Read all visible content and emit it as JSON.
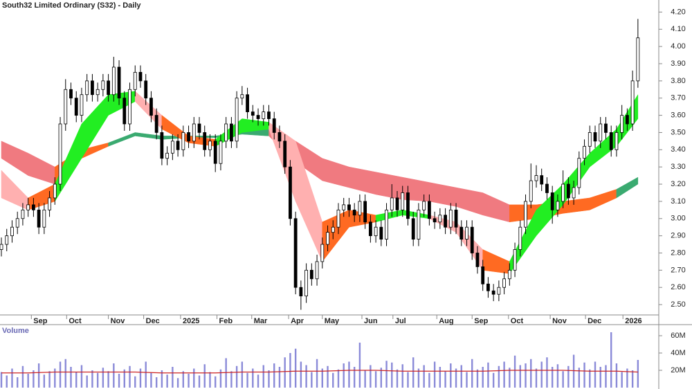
{
  "chart_data": [
    {
      "type": "candlestick",
      "title": "South32 Limited Ordinary (S32) - Daily",
      "xlim": [
        -0.26,
        122.9
      ],
      "xticks": [
        {
          "value": 5.6,
          "label": "Sep"
        },
        {
          "value": 12.2,
          "label": "Oct"
        },
        {
          "value": 20,
          "label": "Nov"
        },
        {
          "value": 26.6,
          "label": "Dec"
        },
        {
          "value": 33.5,
          "label": "2025"
        },
        {
          "value": 40.3,
          "label": "Feb"
        },
        {
          "value": 46.8,
          "label": "Mar"
        },
        {
          "value": 53.7,
          "label": "Apr"
        },
        {
          "value": 60,
          "label": "May"
        },
        {
          "value": 67.4,
          "label": "Jun"
        },
        {
          "value": 73.2,
          "label": "Jul"
        },
        {
          "value": 81.4,
          "label": "Aug"
        },
        {
          "value": 88,
          "label": "Sep"
        },
        {
          "value": 94.8,
          "label": "Oct"
        },
        {
          "value": 102.6,
          "label": "Nov"
        },
        {
          "value": 109.2,
          "label": "Dec"
        },
        {
          "value": 116.2,
          "label": "2026"
        }
      ],
      "ylim": [
        2.44,
        4.27
      ],
      "yticks": [
        {
          "value": 2.5,
          "label": "2.50"
        },
        {
          "value": 2.6,
          "label": "2.60"
        },
        {
          "value": 2.7,
          "label": "2.70"
        },
        {
          "value": 2.8,
          "label": "2.80"
        },
        {
          "value": 2.9,
          "label": "2.90"
        },
        {
          "value": 3.0,
          "label": "3.00"
        },
        {
          "value": 3.1,
          "label": "3.10"
        },
        {
          "value": 3.2,
          "label": "3.20"
        },
        {
          "value": 3.3,
          "label": "3.30"
        },
        {
          "value": 3.4,
          "label": "3.40"
        },
        {
          "value": 3.5,
          "label": "3.50"
        },
        {
          "value": 3.6,
          "label": "3.60"
        },
        {
          "value": 3.7,
          "label": "3.70"
        },
        {
          "value": 3.8,
          "label": "3.80"
        },
        {
          "value": 3.9,
          "label": "3.90"
        },
        {
          "value": 4.0,
          "label": "4.00"
        },
        {
          "value": 4.1,
          "label": "4.10"
        },
        {
          "value": 4.2,
          "label": "4.20"
        }
      ],
      "up_color": "#ffffff",
      "down_color": "#000000",
      "open": [
        2.82,
        2.85,
        2.9,
        2.95,
        3.0,
        3.05,
        3.08,
        3.05,
        2.95,
        3.05,
        3.12,
        3.2,
        3.55,
        3.75,
        3.7,
        3.6,
        3.72,
        3.8,
        3.72,
        3.75,
        3.8,
        3.72,
        3.88,
        3.7,
        3.55,
        3.75,
        3.85,
        3.8,
        3.7,
        3.6,
        3.5,
        3.35,
        3.38,
        3.45,
        3.4,
        3.5,
        3.45,
        3.55,
        3.5,
        3.4,
        3.45,
        3.32,
        3.45,
        3.55,
        3.45,
        3.7,
        3.72,
        3.62,
        3.6,
        3.58,
        3.62,
        3.58,
        3.5,
        3.45,
        3.3,
        3.0,
        2.6,
        2.55,
        2.7,
        2.65,
        2.75,
        2.85,
        2.92,
        2.95,
        3.05,
        3.08,
        3.05,
        3.02,
        3.1,
        2.98,
        2.9,
        2.95,
        2.88,
        3.05,
        3.12,
        3.05,
        3.15,
        3.0,
        2.88,
        3.05,
        3.1,
        3.0,
        2.98,
        3.02,
        2.95,
        3.05,
        2.95,
        2.88,
        2.95,
        2.8,
        2.72,
        2.62,
        2.58,
        2.56,
        2.6,
        2.65,
        2.7,
        2.82,
        2.95,
        3.1,
        3.22,
        3.25,
        3.2,
        3.15,
        3.05,
        3.1,
        3.2,
        3.12,
        3.18,
        3.35,
        3.42,
        3.5,
        3.45,
        3.55,
        3.5,
        3.4,
        3.5,
        3.6,
        3.55,
        3.8
      ],
      "high": [
        2.89,
        2.94,
        2.99,
        3.04,
        3.09,
        3.12,
        3.12,
        3.09,
        3.09,
        3.16,
        3.24,
        3.59,
        3.81,
        3.79,
        3.74,
        3.76,
        3.84,
        3.84,
        3.79,
        3.84,
        3.84,
        3.94,
        3.92,
        3.74,
        3.79,
        3.89,
        3.89,
        3.84,
        3.74,
        3.64,
        3.54,
        3.42,
        3.49,
        3.49,
        3.54,
        3.54,
        3.59,
        3.59,
        3.54,
        3.49,
        3.49,
        3.49,
        3.59,
        3.59,
        3.74,
        3.77,
        3.76,
        3.66,
        3.64,
        3.66,
        3.66,
        3.62,
        3.54,
        3.49,
        3.34,
        3.04,
        2.64,
        2.74,
        2.74,
        2.79,
        2.89,
        2.96,
        2.99,
        3.09,
        3.12,
        3.12,
        3.09,
        3.14,
        3.14,
        3.02,
        2.99,
        2.99,
        3.09,
        3.2,
        3.16,
        3.19,
        3.19,
        3.04,
        3.09,
        3.14,
        3.14,
        3.04,
        3.06,
        3.06,
        3.09,
        3.09,
        2.99,
        2.99,
        2.99,
        2.84,
        2.76,
        2.66,
        2.62,
        2.64,
        2.69,
        2.74,
        2.86,
        2.99,
        3.14,
        3.32,
        3.31,
        3.29,
        3.24,
        3.19,
        3.14,
        3.28,
        3.24,
        3.22,
        3.39,
        3.46,
        3.54,
        3.54,
        3.59,
        3.59,
        3.54,
        3.54,
        3.66,
        3.64,
        3.86,
        4.16
      ],
      "low": [
        2.78,
        2.81,
        2.86,
        2.91,
        2.96,
        3.01,
        3.01,
        2.91,
        2.91,
        3.01,
        3.08,
        3.16,
        3.51,
        3.66,
        3.56,
        3.56,
        3.68,
        3.68,
        3.68,
        3.71,
        3.68,
        3.68,
        3.66,
        3.51,
        3.51,
        3.71,
        3.76,
        3.66,
        3.56,
        3.46,
        3.31,
        3.31,
        3.34,
        3.36,
        3.36,
        3.41,
        3.41,
        3.46,
        3.36,
        3.36,
        3.27,
        3.28,
        3.41,
        3.41,
        3.41,
        3.66,
        3.58,
        3.56,
        3.54,
        3.54,
        3.54,
        3.46,
        3.41,
        3.26,
        2.96,
        2.56,
        2.47,
        2.51,
        2.61,
        2.61,
        2.71,
        2.81,
        2.88,
        2.91,
        3.01,
        3.01,
        2.98,
        2.98,
        2.94,
        2.86,
        2.86,
        2.84,
        2.84,
        3.01,
        3.01,
        3.01,
        2.96,
        2.84,
        2.84,
        3.01,
        2.96,
        2.94,
        2.94,
        2.91,
        2.91,
        2.91,
        2.84,
        2.84,
        2.76,
        2.68,
        2.58,
        2.54,
        2.52,
        2.52,
        2.56,
        2.61,
        2.66,
        2.78,
        2.91,
        3.06,
        3.18,
        3.16,
        3.11,
        2.97,
        3.01,
        3.06,
        3.08,
        3.08,
        3.14,
        3.31,
        3.38,
        3.41,
        3.41,
        3.46,
        3.36,
        3.36,
        3.46,
        3.51,
        3.51,
        3.76
      ],
      "close": [
        2.85,
        2.9,
        2.95,
        3.0,
        3.05,
        3.08,
        3.05,
        2.95,
        3.05,
        3.12,
        3.2,
        3.55,
        3.75,
        3.7,
        3.6,
        3.72,
        3.8,
        3.72,
        3.75,
        3.8,
        3.72,
        3.88,
        3.7,
        3.55,
        3.75,
        3.85,
        3.8,
        3.7,
        3.6,
        3.5,
        3.35,
        3.38,
        3.45,
        3.4,
        3.5,
        3.45,
        3.55,
        3.5,
        3.4,
        3.45,
        3.32,
        3.45,
        3.55,
        3.45,
        3.7,
        3.72,
        3.62,
        3.6,
        3.58,
        3.62,
        3.58,
        3.5,
        3.45,
        3.3,
        3.0,
        2.6,
        2.55,
        2.7,
        2.65,
        2.75,
        2.85,
        2.92,
        2.95,
        3.05,
        3.08,
        3.05,
        3.02,
        3.1,
        2.98,
        2.9,
        2.95,
        2.88,
        3.05,
        3.12,
        3.05,
        3.15,
        3.0,
        2.88,
        3.05,
        3.1,
        3.0,
        2.98,
        3.02,
        2.95,
        3.05,
        2.95,
        2.88,
        2.95,
        2.8,
        2.72,
        2.62,
        2.58,
        2.56,
        2.6,
        2.65,
        2.7,
        2.82,
        2.95,
        3.1,
        3.22,
        3.25,
        3.2,
        3.15,
        3.05,
        3.1,
        3.2,
        3.12,
        3.18,
        3.35,
        3.42,
        3.5,
        3.45,
        3.55,
        3.5,
        3.4,
        3.5,
        3.6,
        3.55,
        3.8,
        4.05
      ],
      "ribbons": [
        {
          "x": [
            0,
            5,
            10,
            15,
            20,
            25,
            30,
            35,
            40,
            45,
            50,
            55,
            60,
            65,
            70,
            75,
            80,
            85,
            90,
            95,
            100,
            105,
            110,
            115,
            119
          ],
          "upper": [
            3.45,
            3.38,
            3.3,
            3.4,
            3.44,
            3.5,
            3.48,
            3.48,
            3.48,
            3.5,
            3.52,
            3.45,
            3.35,
            3.3,
            3.27,
            3.24,
            3.21,
            3.18,
            3.15,
            3.08,
            3.08,
            3.1,
            3.12,
            3.17,
            3.24
          ],
          "lower": [
            3.35,
            3.25,
            3.2,
            3.35,
            3.42,
            3.48,
            3.46,
            3.47,
            3.47,
            3.49,
            3.48,
            3.33,
            3.22,
            3.18,
            3.14,
            3.11,
            3.1,
            3.07,
            3.02,
            2.98,
            3.0,
            3.03,
            3.05,
            3.12,
            3.2
          ],
          "colors": [
            "#f07a80",
            "#f07a80",
            "#ff6a22",
            "#ff6a22",
            "#3aaa70",
            "#3aaa70",
            "#3aaa70",
            "#3aaa70",
            "#3aaa70",
            "#3aaa70",
            "#f07a80",
            "#f07a80",
            "#f07a80",
            "#f07a80",
            "#f07a80",
            "#f07a80",
            "#f07a80",
            "#f07a80",
            "#f07a80",
            "#ff6a22",
            "#ff6a22",
            "#ff6a22",
            "#ff6a22",
            "#3aaa70"
          ]
        },
        {
          "x": [
            0,
            5,
            10,
            15,
            20,
            25,
            30,
            35,
            40,
            45,
            50,
            55,
            60,
            65,
            70,
            75,
            80,
            85,
            90,
            95,
            100,
            105,
            110,
            115,
            119
          ],
          "upper": [
            3.28,
            3.12,
            3.2,
            3.55,
            3.72,
            3.74,
            3.6,
            3.48,
            3.46,
            3.58,
            3.56,
            3.45,
            2.98,
            3.05,
            3.02,
            3.05,
            3.02,
            2.98,
            2.82,
            2.75,
            3.05,
            3.2,
            3.38,
            3.52,
            3.72
          ],
          "lower": [
            3.12,
            3.05,
            3.1,
            3.35,
            3.6,
            3.68,
            3.52,
            3.44,
            3.42,
            3.5,
            3.52,
            3.1,
            2.75,
            2.95,
            2.98,
            3.02,
            3.0,
            2.92,
            2.7,
            2.68,
            2.9,
            3.08,
            3.3,
            3.42,
            3.58
          ],
          "colors": [
            "#ffb0b0",
            "#ff6a22",
            "#22ee22",
            "#22ee22",
            "#22ee22",
            "#ffb0b0",
            "#ff6a22",
            "#ff6a22",
            "#22ee22",
            "#22ee22",
            "#ffb0b0",
            "#ffb0b0",
            "#ff6a22",
            "#ff6a22",
            "#22ee22",
            "#22ee22",
            "#ffb0b0",
            "#ffb0b0",
            "#ff6a22",
            "#22ee22",
            "#22ee22",
            "#22ee22",
            "#22ee22",
            "#22ee22"
          ]
        }
      ]
    },
    {
      "type": "bar",
      "title": "Volume",
      "color": "#8a8ad8",
      "xlim": [
        -0.26,
        122.9
      ],
      "ylim": [
        0,
        72
      ],
      "yticks": [
        {
          "value": 20,
          "label": "20M"
        },
        {
          "value": 40,
          "label": "40M"
        },
        {
          "value": 60,
          "label": "60M"
        }
      ],
      "values": [
        18,
        14,
        22,
        12,
        25,
        16,
        20,
        28,
        15,
        19,
        22,
        30,
        33,
        24,
        18,
        26,
        14,
        20,
        17,
        23,
        19,
        28,
        16,
        21,
        25,
        13,
        22,
        30,
        17,
        12,
        20,
        15,
        24,
        11,
        19,
        16,
        22,
        14,
        27,
        18,
        13,
        21,
        34,
        19,
        25,
        30,
        17,
        22,
        15,
        26,
        20,
        28,
        24,
        35,
        40,
        45,
        30,
        26,
        18,
        33,
        22,
        25,
        17,
        21,
        28,
        30,
        24,
        52,
        20,
        26,
        19,
        23,
        31,
        29,
        21,
        27,
        18,
        35,
        22,
        26,
        17,
        30,
        24,
        19,
        28,
        22,
        26,
        18,
        33,
        21,
        24,
        29,
        17,
        25,
        30,
        23,
        37,
        26,
        28,
        33,
        22,
        30,
        35,
        24,
        27,
        19,
        25,
        38,
        23,
        29,
        21,
        30,
        24,
        26,
        64,
        28,
        18,
        22,
        20,
        32
      ],
      "average": {
        "color": "#cc2222",
        "x": [
          0,
          5,
          10,
          15,
          20,
          25,
          30,
          35,
          40,
          45,
          50,
          55,
          60,
          65,
          70,
          75,
          80,
          85,
          90,
          95,
          100,
          105,
          110,
          115,
          119
        ],
        "values": [
          17,
          17,
          18,
          18,
          18,
          18,
          17,
          17,
          17,
          18,
          18,
          19,
          19,
          20,
          20,
          19,
          19,
          19,
          19,
          20,
          20,
          20,
          19,
          19,
          18
        ]
      }
    }
  ]
}
